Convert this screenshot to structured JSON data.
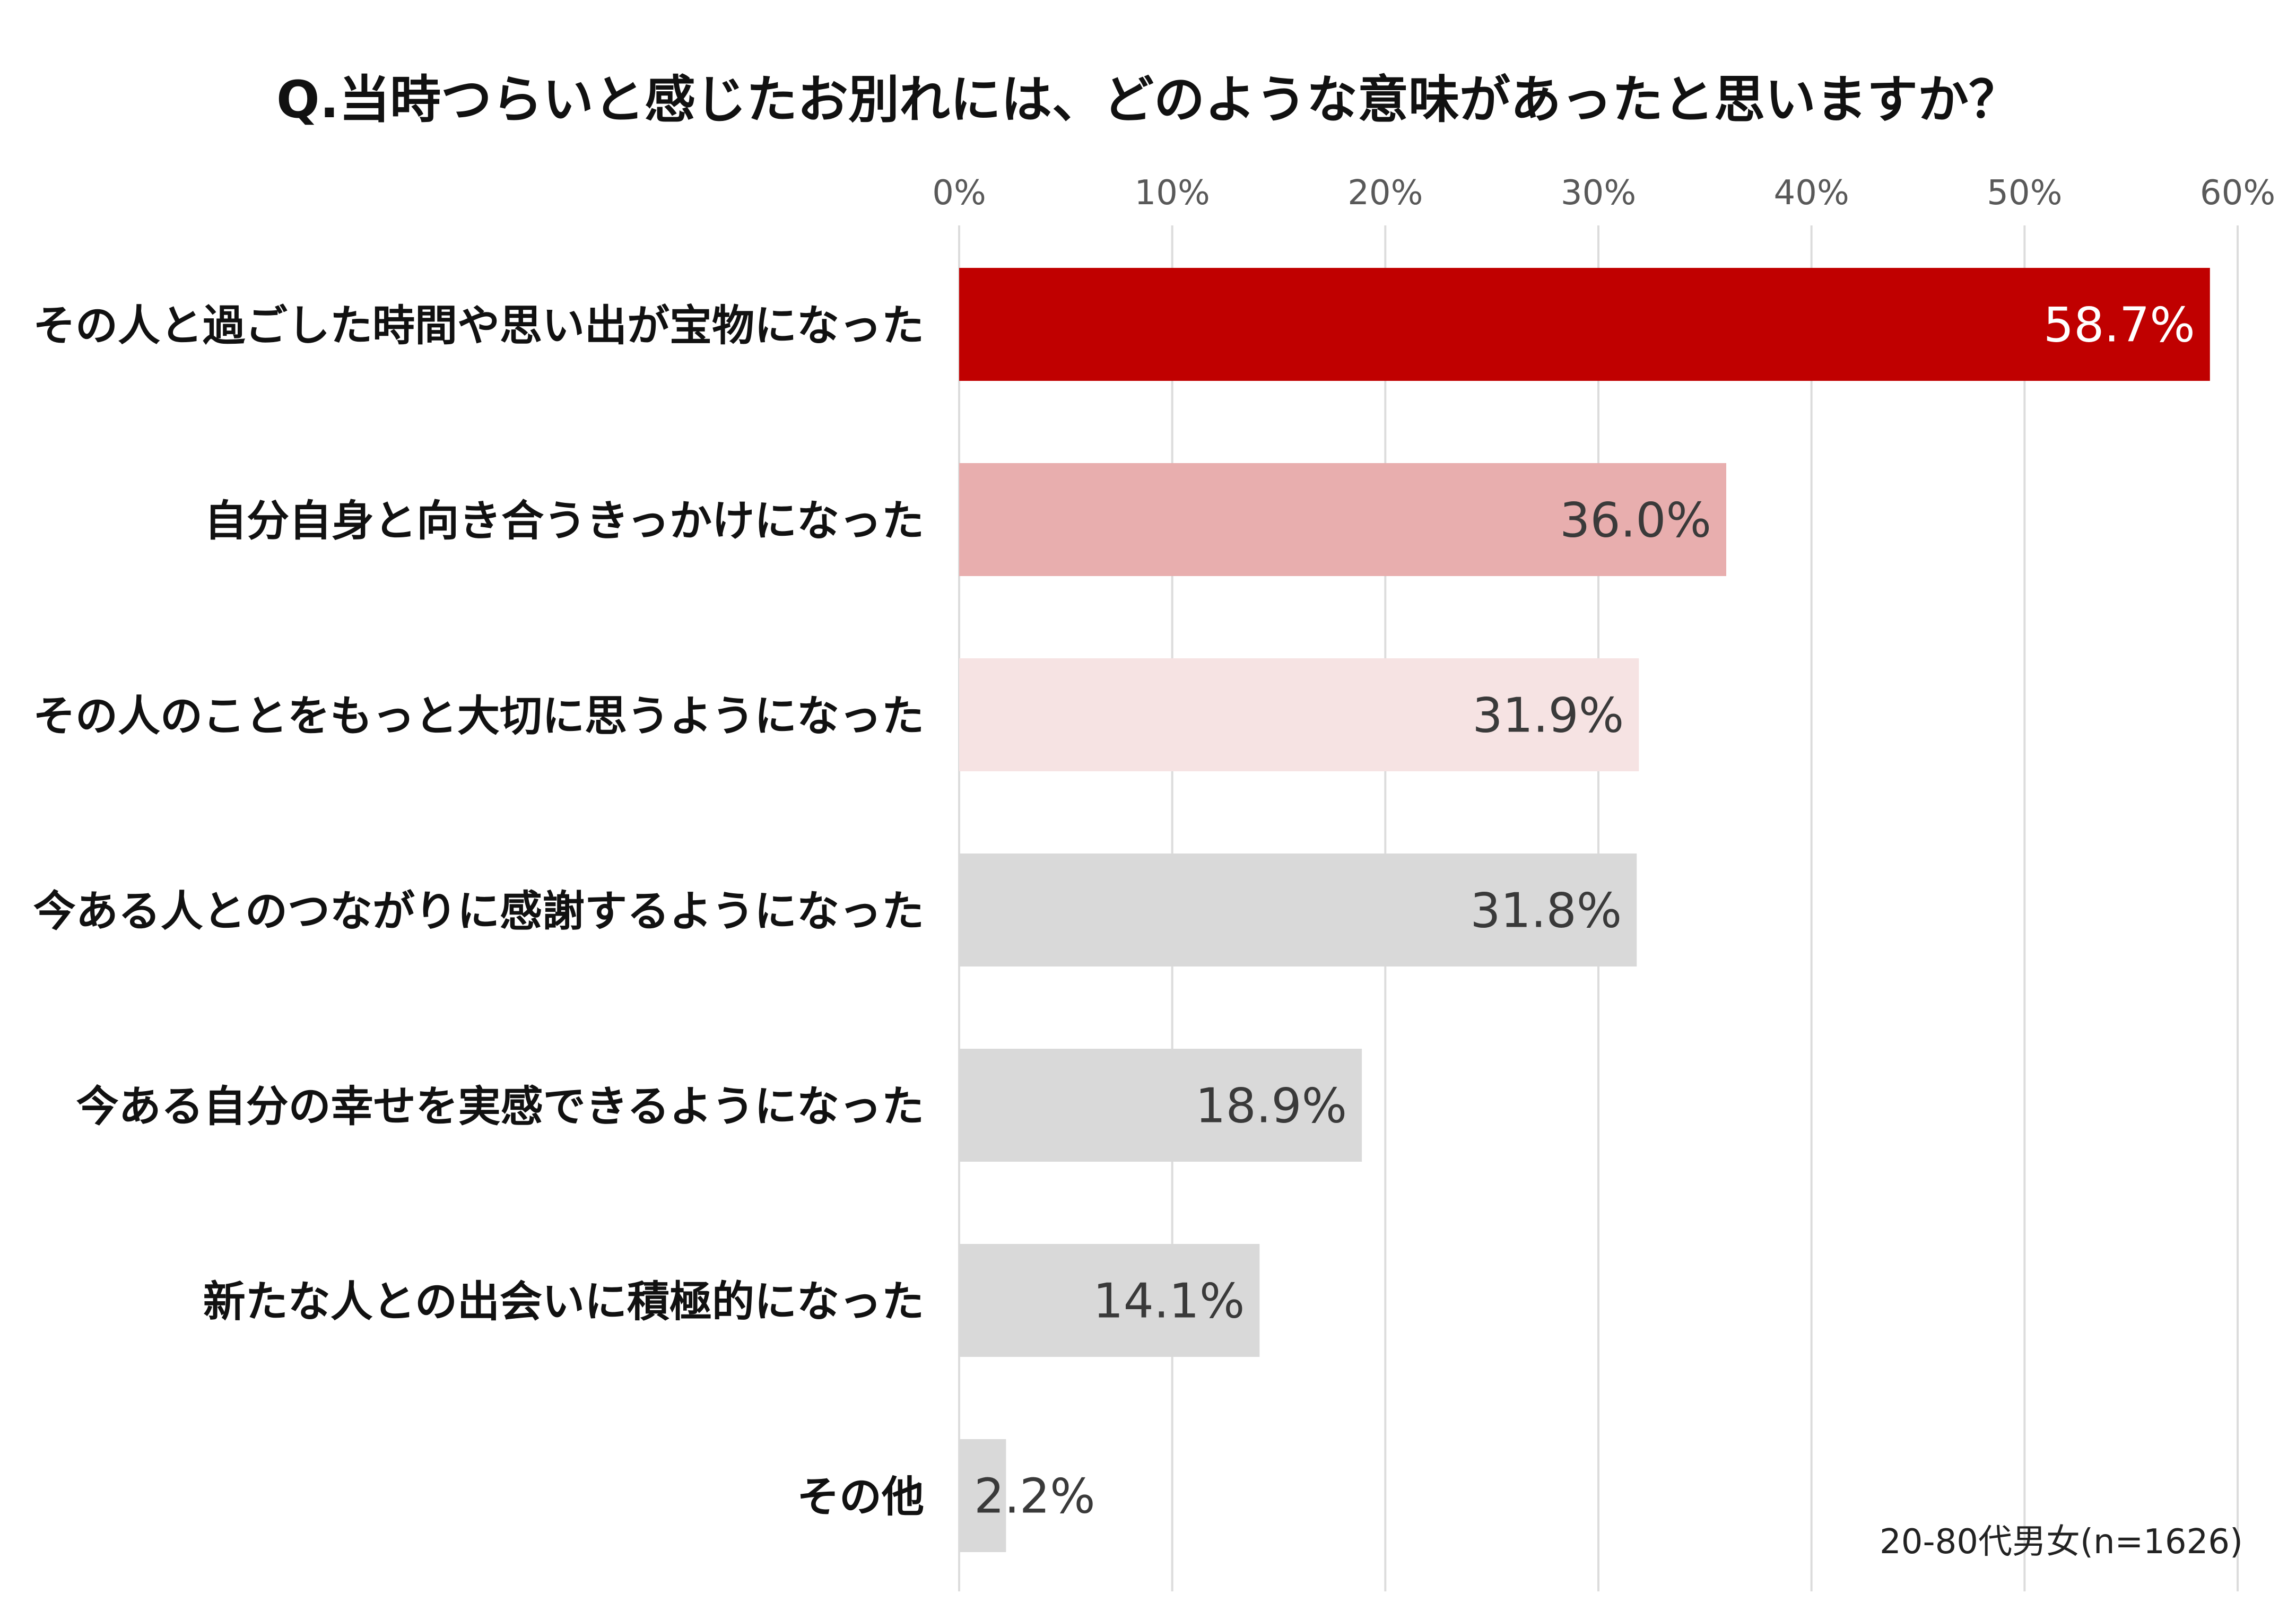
{
  "chart_data": {
    "type": "bar",
    "orientation": "horizontal",
    "title": "Q.当時つらいと感じたお別れには、どのような意味があったと思いますか？",
    "categories": [
      "その人と過ごした時間や思い出が宝物になった",
      "自分自身と向き合うきっかけになった",
      "その人のことをもっと大切に思うようになった",
      "今ある人とのつながりに感謝するようになった",
      "今ある自分の幸せを実感できるようになった",
      "新たな人との出会いに積極的になった",
      "その他"
    ],
    "values": [
      58.7,
      36.0,
      31.9,
      31.8,
      18.9,
      14.1,
      2.2
    ],
    "value_labels": [
      "58.7%",
      "36.0%",
      "31.9%",
      "31.8%",
      "18.9%",
      "14.1%",
      "2.2%"
    ],
    "bar_colors": [
      "#c00000",
      "#e8aeae",
      "#f6e3e3",
      "#d9d9d9",
      "#d9d9d9",
      "#d9d9d9",
      "#d9d9d9"
    ],
    "label_colors": [
      "#ffffff",
      "#3a3a3a",
      "#3a3a3a",
      "#3a3a3a",
      "#3a3a3a",
      "#3a3a3a",
      "#3a3a3a"
    ],
    "xlim": [
      0,
      60
    ],
    "x_ticks": [
      0,
      10,
      20,
      30,
      40,
      50,
      60
    ],
    "x_tick_labels": [
      "0%",
      "10%",
      "20%",
      "30%",
      "40%",
      "50%",
      "60%"
    ],
    "xaxis_position": "top",
    "grid": true,
    "xlabel": "",
    "ylabel": "",
    "note": "20-80代男女(n=1626)"
  }
}
